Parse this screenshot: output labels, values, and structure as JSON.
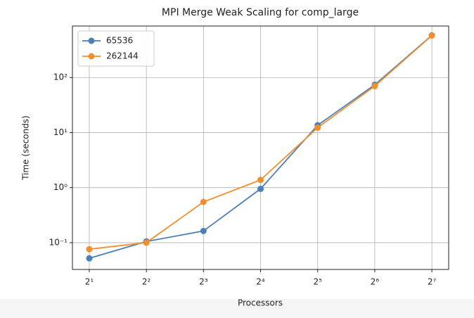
{
  "chart_data": {
    "type": "line",
    "title": "MPI Merge Weak Scaling for comp_large",
    "xlabel": "Processors",
    "ylabel": "Time (seconds)",
    "x": [
      2,
      4,
      8,
      16,
      32,
      64,
      128
    ],
    "series": [
      {
        "name": "65536",
        "color": "#4c7fb8",
        "values": [
          0.052,
          0.105,
          0.163,
          0.95,
          13.6,
          74,
          585
        ]
      },
      {
        "name": "262144",
        "color": "#f28e2b",
        "values": [
          0.076,
          0.1,
          0.55,
          1.38,
          12.3,
          70,
          580
        ]
      }
    ],
    "xscale": "log2",
    "yscale": "log10",
    "xlim": [
      1.63,
      157
    ],
    "ylim": [
      0.0326,
      863
    ],
    "xticks": [
      {
        "value": 2,
        "label": "2¹"
      },
      {
        "value": 4,
        "label": "2²"
      },
      {
        "value": 8,
        "label": "2³"
      },
      {
        "value": 16,
        "label": "2⁴"
      },
      {
        "value": 32,
        "label": "2⁵"
      },
      {
        "value": 64,
        "label": "2⁶"
      },
      {
        "value": 128,
        "label": "2⁷"
      }
    ],
    "yticks": [
      {
        "value": 0.1,
        "label": "10⁻¹"
      },
      {
        "value": 1,
        "label": "10⁰"
      },
      {
        "value": 10,
        "label": "10¹"
      },
      {
        "value": 100,
        "label": "10²"
      }
    ],
    "grid": true,
    "legend": "upper left"
  }
}
